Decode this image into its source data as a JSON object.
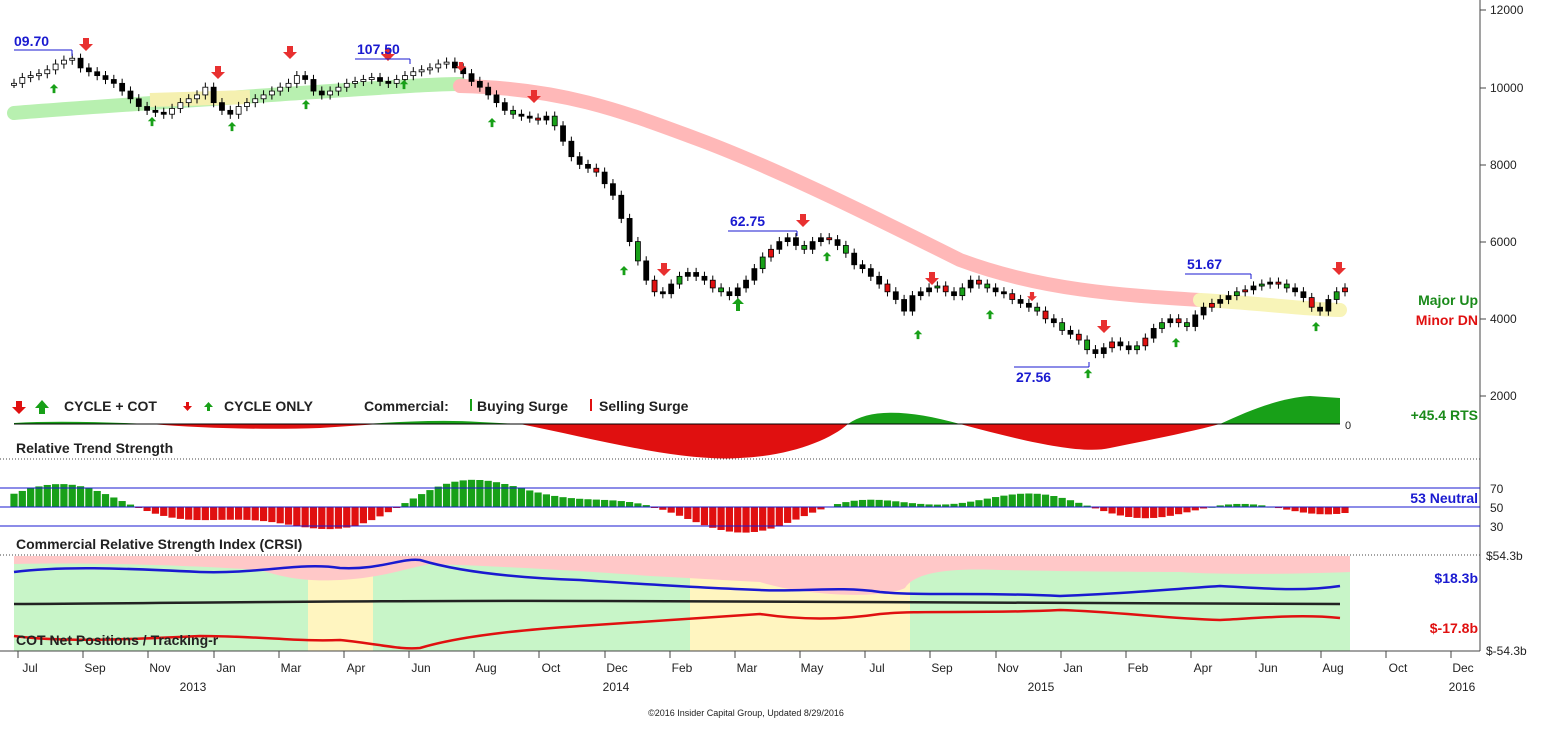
{
  "chart_data": {
    "type": "candlestick",
    "y_axis_ticks": [
      "12000",
      "10000",
      "8000",
      "6000",
      "4000",
      "2000"
    ],
    "crsi_ticks": [
      "70",
      "50",
      "30"
    ],
    "cot_ticks": [
      "$54.3b",
      "$-54.3b"
    ],
    "months": [
      "Jul",
      "Sep",
      "Nov",
      "Jan",
      "Mar",
      "Apr",
      "Jun",
      "Aug",
      "Oct",
      "Dec",
      "Feb",
      "Mar",
      "May",
      "Jul",
      "Sep",
      "Nov",
      "Jan",
      "Feb",
      "Apr",
      "Jun",
      "Aug",
      "Oct",
      "Dec"
    ],
    "years": [
      "2013",
      "2014",
      "2015",
      "2016"
    ],
    "price_annotations": [
      "09.70",
      "107.50",
      "62.75",
      "27.56",
      "51.67"
    ],
    "right_labels": {
      "major": "Major Up",
      "minor": "Minor DN",
      "rts_value": "+45.4 RTS",
      "rts_zero": "0",
      "crsi_value": "53 Neutral",
      "cot_commercial": "$18.3b",
      "cot_tracking": "$-17.8b"
    },
    "legend": {
      "cycle_cot": "CYCLE + COT",
      "cycle_only": "CYCLE ONLY",
      "commercial": "Commercial:",
      "buying": "Buying Surge",
      "selling": "Selling Surge"
    },
    "panels": {
      "rts": "Relative Trend Strength",
      "crsi": "Commercial Relative Strength Index (CRSI)",
      "cot": "COT Net Positions / Tracking-r"
    },
    "footer": "©2016 Insider Capital Group, Updated 8/29/2016",
    "weekly_close": [
      10100,
      10250,
      10300,
      10350,
      10450,
      10600,
      10700,
      10750,
      10500,
      10400,
      10300,
      10200,
      10100,
      9900,
      9700,
      9500,
      9400,
      9350,
      9300,
      9450,
      9600,
      9700,
      9800,
      10000,
      9600,
      9400,
      9300,
      9500,
      9600,
      9700,
      9800,
      9900,
      10000,
      10100,
      10300,
      10200,
      9900,
      9800,
      9900,
      10000,
      10100,
      10150,
      10200,
      10250,
      10150,
      10100,
      10200,
      10300,
      10400,
      10450,
      10500,
      10600,
      10650,
      10500,
      10350,
      10150,
      10000,
      9800,
      9600,
      9400,
      9300,
      9250,
      9200,
      9150,
      9250,
      9000,
      8600,
      8200,
      8000,
      7900,
      7800,
      7500,
      7200,
      6600,
      6000,
      5500,
      5000,
      4700,
      4650,
      4900,
      5100,
      5200,
      5100,
      5000,
      4800,
      4700,
      4600,
      4800,
      5000,
      5300,
      5600,
      5800,
      6000,
      6100,
      5900,
      5800,
      6000,
      6100,
      6050,
      5900,
      5700,
      5400,
      5300,
      5100,
      4900,
      4700,
      4500,
      4200,
      4600,
      4700,
      4800,
      4850,
      4700,
      4600,
      4800,
      5000,
      4900,
      4800,
      4700,
      4650,
      4500,
      4400,
      4300,
      4200,
      4000,
      3900,
      3700,
      3600,
      3450,
      3200,
      3100,
      3250,
      3400,
      3300,
      3200,
      3300,
      3500,
      3750,
      3900,
      4000,
      3900,
      3800,
      4100,
      4300,
      4400,
      4500,
      4600,
      4700,
      4750,
      4850,
      4900,
      4950,
      4900,
      4800,
      4700,
      4550,
      4300,
      4200,
      4500,
      4700,
      4800
    ]
  }
}
